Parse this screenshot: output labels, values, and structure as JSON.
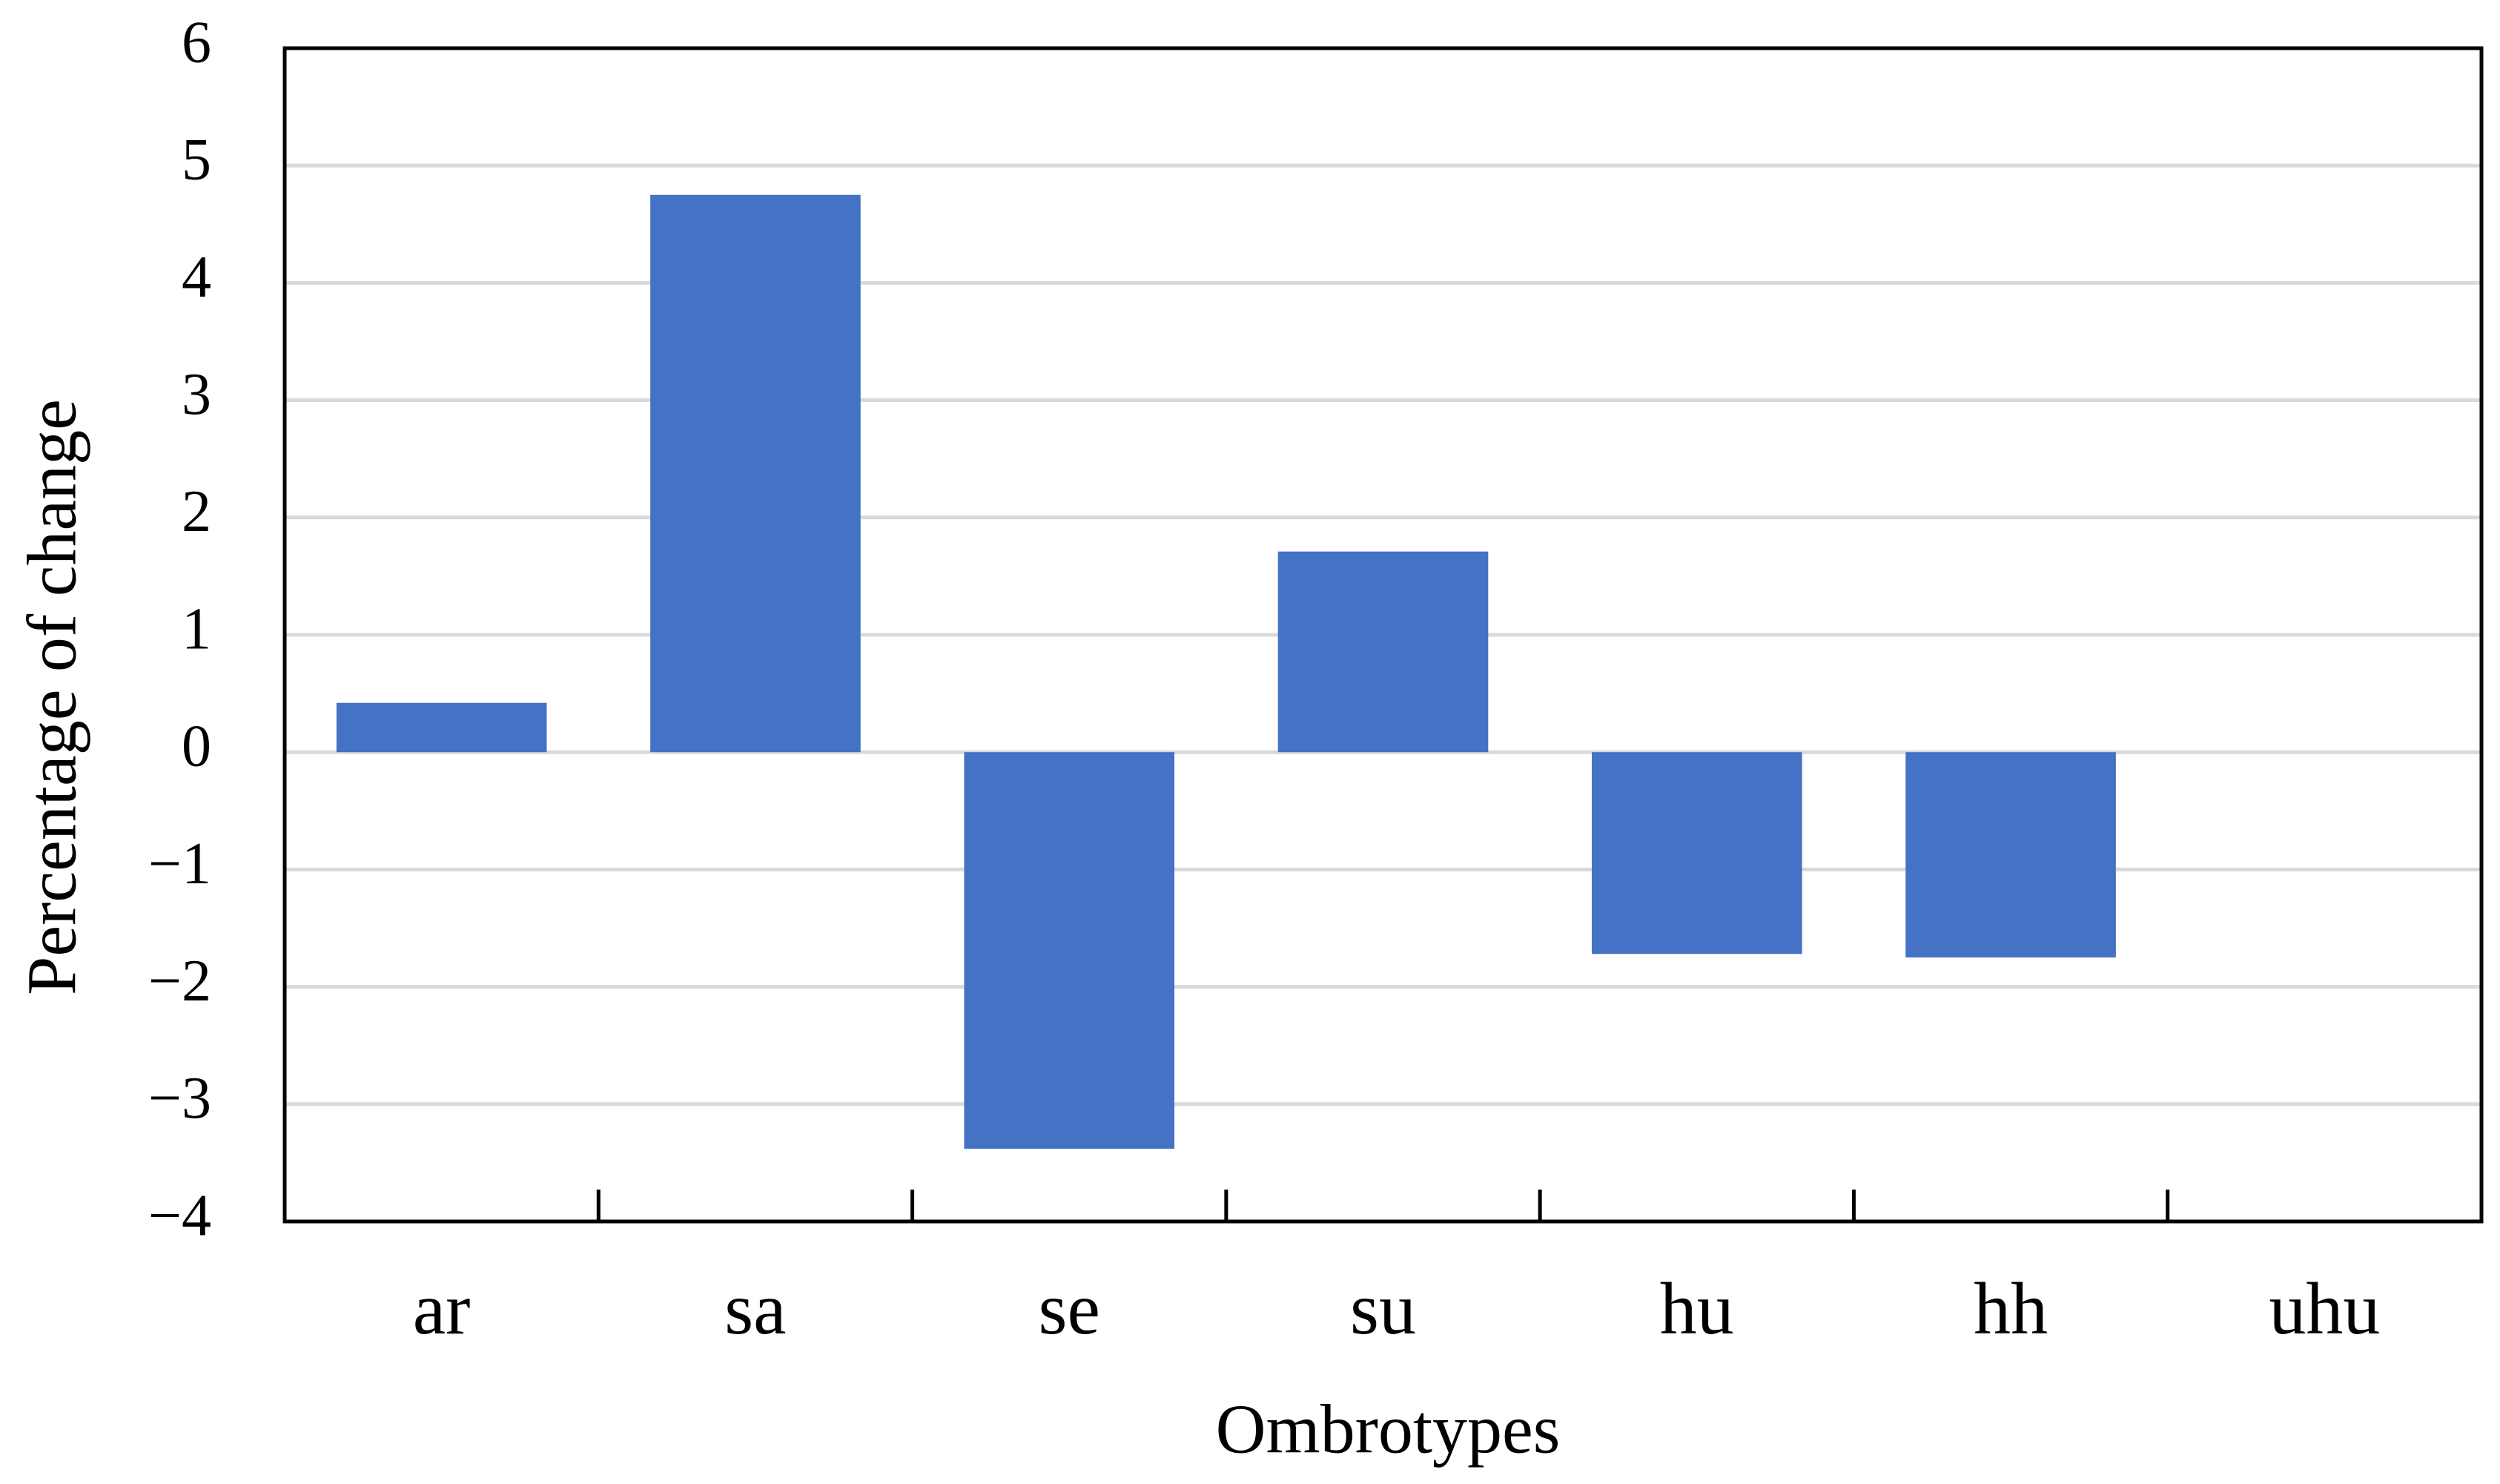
{
  "chart_data": {
    "type": "bar",
    "x_label": "Ombrotypes",
    "y_label": "Percentage of change",
    "categories": [
      "ar",
      "sa",
      "se",
      "su",
      "hu",
      "hh",
      "uhu"
    ],
    "values": [
      0.42,
      4.75,
      -3.38,
      1.71,
      -1.72,
      -1.75,
      0
    ],
    "color": "#4472c4",
    "ylim": [
      -4,
      6
    ],
    "yticks": [
      {
        "value": -4,
        "label": "−4"
      },
      {
        "value": -3,
        "label": "−3"
      },
      {
        "value": -2,
        "label": "−2"
      },
      {
        "value": -1,
        "label": "−1"
      },
      0,
      1,
      2,
      3,
      4,
      5,
      6
    ],
    "grid": true
  }
}
